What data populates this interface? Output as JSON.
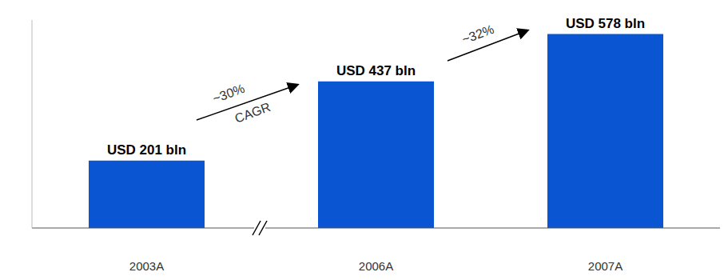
{
  "chart_data": {
    "type": "bar",
    "categories": [
      "2003A",
      "2006A",
      "2007A"
    ],
    "values": [
      201,
      437,
      578
    ],
    "value_labels": [
      "USD 201 bln",
      "USD 437 bln",
      "USD 578 bln"
    ],
    "data_labels": true,
    "color": "#0a55d1",
    "ylim": [
      0,
      620
    ],
    "tick_labels": "x",
    "annotations": [
      "~30%",
      "CAGR",
      "~32%"
    ]
  }
}
